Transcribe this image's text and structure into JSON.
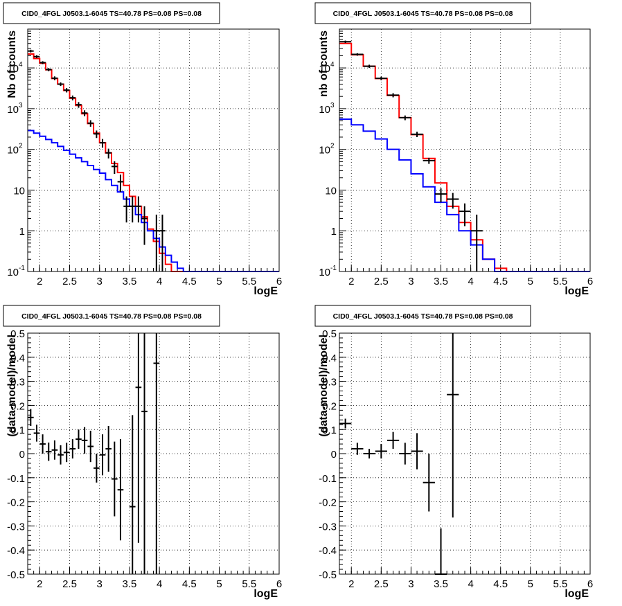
{
  "chart_data": [
    {
      "type": "line",
      "title": "CID0_4FGL J0503.1-6045 TS=40.78 PS=0.08 PS=0.08",
      "xlabel": "logE",
      "ylabel": "Nb of counts",
      "xlim": [
        1.8,
        6.0
      ],
      "ylim": [
        0.1,
        90000
      ],
      "yscale": "log",
      "grid": true,
      "xticks": [
        "2",
        "2.5",
        "3",
        "3.5",
        "4",
        "4.5",
        "5",
        "5.5",
        "6"
      ],
      "yticks": [
        "10^-1",
        "1",
        "10",
        "10^2",
        "10^3",
        "10^4"
      ],
      "bin_edges": [
        1.8,
        1.9,
        2.0,
        2.1,
        2.2,
        2.3,
        2.4,
        2.5,
        2.6,
        2.7,
        2.8,
        2.9,
        3.0,
        3.1,
        3.2,
        3.3,
        3.4,
        3.5,
        3.6,
        3.7,
        3.8,
        3.9,
        4.0,
        4.1,
        4.2,
        4.3,
        4.4,
        4.5,
        4.6,
        4.7,
        4.8,
        4.9,
        5.0,
        5.1,
        5.2,
        5.3,
        5.4,
        5.5,
        5.6,
        5.7,
        5.8,
        5.9,
        6.0
      ],
      "series": [
        {
          "color": "#ff0000",
          "values": [
            22000,
            17000,
            13000,
            9000,
            5500,
            4000,
            2800,
            1800,
            1200,
            750,
            430,
            250,
            145,
            82,
            45,
            27,
            13,
            7,
            4,
            2.2,
            1.1,
            0.55,
            0.28,
            0.15,
            0.1,
            0.1,
            0.1,
            0.1,
            0.1,
            0.1,
            0.1,
            0.1,
            0.1,
            0.1,
            0.1,
            0.1,
            0.1,
            0.1,
            0.1,
            0.1,
            0.1,
            0.1
          ]
        },
        {
          "color": "#0000ff",
          "values": [
            290,
            250,
            210,
            175,
            145,
            118,
            95,
            76,
            62,
            50,
            40,
            32,
            26,
            18,
            13,
            9,
            6,
            4,
            2.5,
            1.6,
            1.0,
            0.65,
            0.4,
            0.25,
            0.17,
            0.12,
            0.1,
            0.1,
            0.1,
            0.1,
            0.1,
            0.1,
            0.1,
            0.1,
            0.1,
            0.1,
            0.1,
            0.1,
            0.1,
            0.1,
            0.1,
            0.1
          ]
        }
      ],
      "data_points": [
        {
          "x": 1.85,
          "y": 26000,
          "ylo": 24000,
          "yhi": 28000,
          "xerr": 0.05
        },
        {
          "x": 1.95,
          "y": 19000,
          "ylo": 17500,
          "yhi": 20500,
          "xerr": 0.05
        },
        {
          "x": 2.05,
          "y": 13500,
          "ylo": 12400,
          "yhi": 14600,
          "xerr": 0.05
        },
        {
          "x": 2.15,
          "y": 9100,
          "ylo": 8300,
          "yhi": 9900,
          "xerr": 0.05
        },
        {
          "x": 2.25,
          "y": 5600,
          "ylo": 5000,
          "yhi": 6200,
          "xerr": 0.05
        },
        {
          "x": 2.35,
          "y": 4000,
          "ylo": 3600,
          "yhi": 4400,
          "xerr": 0.05
        },
        {
          "x": 2.45,
          "y": 2850,
          "ylo": 2500,
          "yhi": 3200,
          "xerr": 0.05
        },
        {
          "x": 2.55,
          "y": 1850,
          "ylo": 1600,
          "yhi": 2100,
          "xerr": 0.05
        },
        {
          "x": 2.65,
          "y": 1250,
          "ylo": 1050,
          "yhi": 1450,
          "xerr": 0.05
        },
        {
          "x": 2.75,
          "y": 780,
          "ylo": 650,
          "yhi": 910,
          "xerr": 0.05
        },
        {
          "x": 2.85,
          "y": 440,
          "ylo": 360,
          "yhi": 520,
          "xerr": 0.05
        },
        {
          "x": 2.95,
          "y": 240,
          "ylo": 190,
          "yhi": 290,
          "xerr": 0.05
        },
        {
          "x": 3.05,
          "y": 145,
          "ylo": 110,
          "yhi": 180,
          "xerr": 0.05
        },
        {
          "x": 3.15,
          "y": 82,
          "ylo": 60,
          "yhi": 104,
          "xerr": 0.05
        },
        {
          "x": 3.25,
          "y": 38,
          "ylo": 25,
          "yhi": 51,
          "xerr": 0.05
        },
        {
          "x": 3.35,
          "y": 16,
          "ylo": 9,
          "yhi": 24,
          "xerr": 0.05
        },
        {
          "x": 3.45,
          "y": 4,
          "ylo": 1.6,
          "yhi": 7,
          "xerr": 0.05
        },
        {
          "x": 3.55,
          "y": 4,
          "ylo": 1.6,
          "yhi": 7,
          "xerr": 0.05
        },
        {
          "x": 3.65,
          "y": 4,
          "ylo": 1.6,
          "yhi": 7,
          "xerr": 0.05
        },
        {
          "x": 3.75,
          "y": 2,
          "ylo": 0.45,
          "yhi": 4,
          "xerr": 0.05
        },
        {
          "x": 3.95,
          "y": 1,
          "ylo": 0.1,
          "yhi": 2.5,
          "xerr": 0.05
        },
        {
          "x": 4.05,
          "y": 1,
          "ylo": 0.1,
          "yhi": 2.5,
          "xerr": 0.05
        }
      ]
    },
    {
      "type": "line",
      "title": "CID0_4FGL J0503.1-6045 TS=40.78 PS=0.08 PS=0.08",
      "xlabel": "logE",
      "ylabel": "nb of counts",
      "xlim": [
        1.8,
        6.0
      ],
      "ylim": [
        0.1,
        90000
      ],
      "yscale": "log",
      "grid": true,
      "xticks": [
        "2",
        "2.5",
        "3",
        "3.5",
        "4",
        "4.5",
        "5",
        "5.5",
        "6"
      ],
      "yticks": [
        "10^-1",
        "1",
        "10",
        "10^2",
        "10^3",
        "10^4"
      ],
      "bin_edges": [
        1.8,
        2.0,
        2.2,
        2.4,
        2.6,
        2.8,
        3.0,
        3.2,
        3.4,
        3.6,
        3.8,
        4.0,
        4.2,
        4.4,
        4.6,
        4.8,
        5.0,
        5.2,
        5.4,
        5.6,
        5.8,
        6.0
      ],
      "series": [
        {
          "color": "#ff0000",
          "values": [
            40000,
            21000,
            11000,
            5500,
            2100,
            600,
            230,
            60,
            15,
            4,
            1.6,
            0.6,
            0.2,
            0.12,
            0.1,
            0.1,
            0.1,
            0.1,
            0.1,
            0.1,
            0.1
          ]
        },
        {
          "color": "#0000ff",
          "values": [
            550,
            400,
            280,
            180,
            100,
            55,
            25,
            12,
            5,
            2.5,
            1.0,
            0.45,
            0.2,
            0.1,
            0.1,
            0.1,
            0.1,
            0.1,
            0.1,
            0.1,
            0.1
          ]
        }
      ],
      "data_points": [
        {
          "x": 1.9,
          "y": 44000,
          "ylo": 41000,
          "yhi": 47000,
          "xerr": 0.1
        },
        {
          "x": 2.1,
          "y": 21500,
          "ylo": 20000,
          "yhi": 23000,
          "xerr": 0.1
        },
        {
          "x": 2.3,
          "y": 11000,
          "ylo": 10000,
          "yhi": 12000,
          "xerr": 0.1
        },
        {
          "x": 2.5,
          "y": 5550,
          "ylo": 5000,
          "yhi": 6100,
          "xerr": 0.1
        },
        {
          "x": 2.7,
          "y": 2150,
          "ylo": 1900,
          "yhi": 2400,
          "xerr": 0.1
        },
        {
          "x": 2.9,
          "y": 600,
          "ylo": 520,
          "yhi": 680,
          "xerr": 0.1
        },
        {
          "x": 3.1,
          "y": 235,
          "ylo": 200,
          "yhi": 270,
          "xerr": 0.1
        },
        {
          "x": 3.3,
          "y": 53,
          "ylo": 44,
          "yhi": 62,
          "xerr": 0.1
        },
        {
          "x": 3.5,
          "y": 8,
          "ylo": 5,
          "yhi": 11,
          "xerr": 0.1
        },
        {
          "x": 3.7,
          "y": 6,
          "ylo": 3.5,
          "yhi": 8.5,
          "xerr": 0.1
        },
        {
          "x": 3.9,
          "y": 3,
          "ylo": 1.3,
          "yhi": 4.7,
          "xerr": 0.1
        },
        {
          "x": 4.1,
          "y": 1,
          "ylo": 0.1,
          "yhi": 2.5,
          "xerr": 0.1
        }
      ]
    },
    {
      "type": "scatter",
      "title": "CID0_4FGL J0503.1-6045 TS=40.78 PS=0.08 PS=0.08",
      "xlabel": "logE",
      "ylabel": "(data-model)/model",
      "xlim": [
        1.8,
        6.0
      ],
      "ylim": [
        -0.5,
        0.5
      ],
      "grid": true,
      "xticks": [
        "2",
        "2.5",
        "3",
        "3.5",
        "4",
        "4.5",
        "5",
        "5.5",
        "6"
      ],
      "yticks": [
        "-0.5",
        "-0.4",
        "-0.3",
        "-0.2",
        "-0.1",
        "0",
        "0.1",
        "0.2",
        "0.3",
        "0.4",
        "0.5"
      ],
      "data_points": [
        {
          "x": 1.85,
          "y": 0.15,
          "ylo": 0.115,
          "yhi": 0.185,
          "xerr": 0.05
        },
        {
          "x": 1.95,
          "y": 0.085,
          "ylo": 0.05,
          "yhi": 0.12,
          "xerr": 0.05
        },
        {
          "x": 2.05,
          "y": 0.04,
          "ylo": 0.0,
          "yhi": 0.08,
          "xerr": 0.05
        },
        {
          "x": 2.15,
          "y": 0.008,
          "ylo": -0.03,
          "yhi": 0.046,
          "xerr": 0.05
        },
        {
          "x": 2.25,
          "y": 0.015,
          "ylo": -0.025,
          "yhi": 0.055,
          "xerr": 0.05
        },
        {
          "x": 2.35,
          "y": -0.005,
          "ylo": -0.045,
          "yhi": 0.035,
          "xerr": 0.05
        },
        {
          "x": 2.45,
          "y": 0.005,
          "ylo": -0.035,
          "yhi": 0.045,
          "xerr": 0.05
        },
        {
          "x": 2.55,
          "y": 0.02,
          "ylo": -0.02,
          "yhi": 0.06,
          "xerr": 0.05
        },
        {
          "x": 2.65,
          "y": 0.06,
          "ylo": 0.02,
          "yhi": 0.1,
          "xerr": 0.05
        },
        {
          "x": 2.75,
          "y": 0.055,
          "ylo": 0.0,
          "yhi": 0.11,
          "xerr": 0.05
        },
        {
          "x": 2.85,
          "y": 0.03,
          "ylo": -0.035,
          "yhi": 0.095,
          "xerr": 0.05
        },
        {
          "x": 2.95,
          "y": -0.06,
          "ylo": -0.12,
          "yhi": 0.0,
          "xerr": 0.05
        },
        {
          "x": 3.05,
          "y": -0.005,
          "ylo": -0.09,
          "yhi": 0.08,
          "xerr": 0.05
        },
        {
          "x": 3.15,
          "y": 0.02,
          "ylo": -0.075,
          "yhi": 0.115,
          "xerr": 0.05
        },
        {
          "x": 3.25,
          "y": -0.105,
          "ylo": -0.26,
          "yhi": 0.05,
          "xerr": 0.05
        },
        {
          "x": 3.35,
          "y": -0.15,
          "ylo": -0.36,
          "yhi": 0.06,
          "xerr": 0.05
        },
        {
          "x": 3.55,
          "y": -0.22,
          "ylo": -0.5,
          "yhi": 0.16,
          "xerr": 0.05
        },
        {
          "x": 3.65,
          "y": 0.275,
          "ylo": -0.37,
          "yhi": 0.5,
          "xerr": 0.05
        },
        {
          "x": 3.75,
          "y": 0.175,
          "ylo": -0.5,
          "yhi": 0.5,
          "xerr": 0.05
        },
        {
          "x": 3.95,
          "y": 0.375,
          "ylo": -0.5,
          "yhi": 0.5,
          "xerr": 0.05
        }
      ]
    },
    {
      "type": "scatter",
      "title": "CID0_4FGL J0503.1-6045 TS=40.78 PS=0.08 PS=0.08",
      "xlabel": "logE",
      "ylabel": "(data-model)/model",
      "xlim": [
        1.8,
        6.0
      ],
      "ylim": [
        -0.5,
        0.5
      ],
      "grid": true,
      "xticks": [
        "2",
        "2.5",
        "3",
        "3.5",
        "4",
        "4.5",
        "5",
        "5.5",
        "6"
      ],
      "yticks": [
        "-0.5",
        "-0.4",
        "-0.3",
        "-0.2",
        "-0.1",
        "0",
        "0.1",
        "0.2",
        "0.3",
        "0.4",
        "0.5"
      ],
      "data_points": [
        {
          "x": 1.9,
          "y": 0.125,
          "ylo": 0.105,
          "yhi": 0.145,
          "xerr": 0.1
        },
        {
          "x": 2.1,
          "y": 0.02,
          "ylo": -0.005,
          "yhi": 0.045,
          "xerr": 0.1
        },
        {
          "x": 2.3,
          "y": 0.0,
          "ylo": -0.02,
          "yhi": 0.02,
          "xerr": 0.1
        },
        {
          "x": 2.5,
          "y": 0.01,
          "ylo": -0.02,
          "yhi": 0.04,
          "xerr": 0.1
        },
        {
          "x": 2.7,
          "y": 0.055,
          "ylo": 0.02,
          "yhi": 0.09,
          "xerr": 0.1
        },
        {
          "x": 2.9,
          "y": 0.0,
          "ylo": -0.045,
          "yhi": 0.045,
          "xerr": 0.1
        },
        {
          "x": 3.1,
          "y": 0.01,
          "ylo": -0.065,
          "yhi": 0.085,
          "xerr": 0.1
        },
        {
          "x": 3.3,
          "y": -0.12,
          "ylo": -0.24,
          "yhi": 0.0,
          "xerr": 0.1
        },
        {
          "x": 3.5,
          "y": -0.5,
          "ylo": -0.5,
          "yhi": -0.31,
          "xerr": 0.1
        },
        {
          "x": 3.7,
          "y": 0.245,
          "ylo": -0.265,
          "yhi": 0.5,
          "xerr": 0.1
        }
      ]
    }
  ]
}
